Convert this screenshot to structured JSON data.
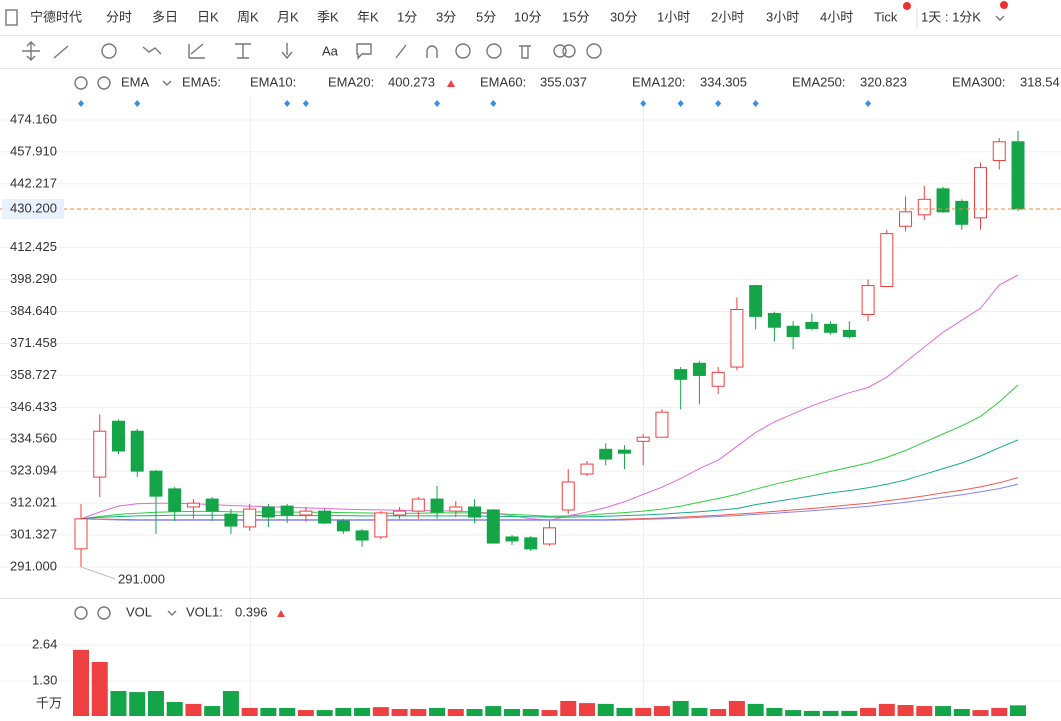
{
  "toolbar": {
    "stock": "宁德时代",
    "periods": [
      "分时",
      "多日",
      "日K",
      "周K",
      "月K",
      "季K",
      "年K",
      "1分",
      "3分",
      "5分",
      "10分",
      "15分",
      "30分",
      "1小时",
      "2小时",
      "3小时",
      "4小时",
      "Tick"
    ],
    "active_period": 2,
    "interval": "1天 : 1分K",
    "text_tool": "Aa"
  },
  "chart_data": [
    {
      "type": "candlestick",
      "title": "EMA",
      "inactive_series": [
        "EMA5:",
        "EMA10:"
      ],
      "ylim": [
        281.3,
        486.2
      ],
      "log": true,
      "grid": true,
      "up_color": "#ee4040",
      "down_color": "#14a548",
      "yticks": [
        {
          "value": 474.16,
          "label": "474.160"
        },
        {
          "value": 457.91,
          "label": "457.910"
        },
        {
          "value": 442.217,
          "label": "442.217"
        },
        {
          "value": 412.425,
          "label": "412.425"
        },
        {
          "value": 398.29,
          "label": "398.290"
        },
        {
          "value": 384.64,
          "label": "384.640"
        },
        {
          "value": 371.458,
          "label": "371.458"
        },
        {
          "value": 358.727,
          "label": "358.727"
        },
        {
          "value": 346.433,
          "label": "346.433"
        },
        {
          "value": 334.56,
          "label": "334.560"
        },
        {
          "value": 323.094,
          "label": "323.094"
        },
        {
          "value": 312.021,
          "label": "312.021"
        },
        {
          "value": 301.327,
          "label": "301.327"
        },
        {
          "value": 291,
          "label": "291.000"
        }
      ],
      "open": [
        296.8,
        321.0,
        341.2,
        337.5,
        323.1,
        316.9,
        310.7,
        313.4,
        308.3,
        304.0,
        310.7,
        311.0,
        308.0,
        309.3,
        306.0,
        302.7,
        300.7,
        308.0,
        309.3,
        313.4,
        309.3,
        310.7,
        309.7,
        300.7,
        300.4,
        298.4,
        309.7,
        322.1,
        330.9,
        330.6,
        333.8,
        335.3,
        361.0,
        363.5,
        354.5,
        362.0,
        395.7,
        383.8,
        378.5,
        380.1,
        379.3,
        376.8,
        383.4,
        395.3,
        422.2,
        427.5,
        439.8,
        433.8,
        426.1,
        453.6,
        463.0
      ],
      "high": [
        311.7,
        343.8,
        341.9,
        338.3,
        323.5,
        317.6,
        313.4,
        314.1,
        310.0,
        311.7,
        311.7,
        311.7,
        310.7,
        310.0,
        306.7,
        303.3,
        309.3,
        310.7,
        314.1,
        317.9,
        312.7,
        313.4,
        310.0,
        301.3,
        301.0,
        306.0,
        323.8,
        326.7,
        333.1,
        332.4,
        336.4,
        345.7,
        362.0,
        364.3,
        362.0,
        390.6,
        396.0,
        384.6,
        380.6,
        383.8,
        380.6,
        380.6,
        398.3,
        420.6,
        436.2,
        441.3,
        440.8,
        434.8,
        452.6,
        464.9,
        468.6
      ],
      "low": [
        291.0,
        314.1,
        329.2,
        321.0,
        301.7,
        306.0,
        306.7,
        306.0,
        301.7,
        302.7,
        304.0,
        305.3,
        305.7,
        305.0,
        301.7,
        297.5,
        300.0,
        306.7,
        306.7,
        306.7,
        307.3,
        305.3,
        298.5,
        298.1,
        296.1,
        297.8,
        308.3,
        321.4,
        325.2,
        323.8,
        325.2,
        335.3,
        345.7,
        347.6,
        351.5,
        360.7,
        377.2,
        372.3,
        369.1,
        376.8,
        375.1,
        373.5,
        380.6,
        395.3,
        419.7,
        425.1,
        428.4,
        420.6,
        420.6,
        449.2,
        429.3
      ],
      "close": [
        306.7,
        337.5,
        330.3,
        323.1,
        314.4,
        309.3,
        312.0,
        309.3,
        304.3,
        310.0,
        307.3,
        308.0,
        309.3,
        305.3,
        302.7,
        299.7,
        308.7,
        309.3,
        313.4,
        309.0,
        310.7,
        307.3,
        298.7,
        299.4,
        296.8,
        303.7,
        319.3,
        325.6,
        327.4,
        329.5,
        335.3,
        344.6,
        357.2,
        358.7,
        359.9,
        385.5,
        382.6,
        378.1,
        374.3,
        377.6,
        376.0,
        374.3,
        395.7,
        418.8,
        428.9,
        434.8,
        428.9,
        423.1,
        450.1,
        463.0,
        430.2
      ],
      "series": [
        {
          "name": "EMA20:",
          "color": "#e26bd6",
          "values": [
            306.7,
            309,
            311,
            311.8,
            312,
            312,
            311.8,
            311.5,
            311.2,
            311,
            310.8,
            310.6,
            310.4,
            310.2,
            310,
            309.8,
            309.7,
            309.6,
            309.5,
            309.4,
            309.3,
            309.1,
            308.6,
            307.8,
            306.8,
            306.2,
            307.7,
            309,
            310.5,
            312.5,
            315,
            317.5,
            320.5,
            324,
            327,
            332,
            337,
            341,
            344,
            347,
            349.5,
            352,
            354,
            358,
            364,
            370,
            376,
            381,
            386,
            396,
            400.273
          ]
        },
        {
          "name": "EMA60:",
          "color": "#2fcf3e",
          "values": [
            306.7,
            307.5,
            308.2,
            308.6,
            308.9,
            309.1,
            309.2,
            309.2,
            309.1,
            309,
            309,
            309,
            308.9,
            308.9,
            308.8,
            308.7,
            308.6,
            308.6,
            308.6,
            308.7,
            308.7,
            308.7,
            308.5,
            308.2,
            307.9,
            307.6,
            307.7,
            308,
            308.4,
            308.8,
            309.3,
            310,
            311,
            312.3,
            313.6,
            315,
            316.8,
            318.5,
            320,
            321.5,
            323,
            324.5,
            326,
            328,
            330.5,
            333.5,
            336.5,
            339.5,
            343,
            348.5,
            355.037
          ]
        },
        {
          "name": "EMA120:",
          "color": "#17ad8c",
          "values": [
            306.7,
            307.2,
            307.5,
            307.7,
            307.8,
            307.9,
            307.9,
            307.9,
            307.9,
            307.9,
            307.8,
            307.8,
            307.8,
            307.8,
            307.8,
            307.7,
            307.7,
            307.7,
            307.7,
            307.7,
            307.7,
            307.7,
            307.6,
            307.5,
            307.4,
            307.3,
            307.3,
            307.4,
            307.6,
            307.8,
            308,
            308.3,
            308.7,
            309.1,
            309.6,
            310.2,
            311.5,
            312.5,
            313.5,
            314.5,
            315.5,
            316.3,
            317.3,
            318.5,
            320,
            322,
            324,
            326,
            328.5,
            331.5,
            334.305
          ]
        },
        {
          "name": "EMA250:",
          "color": "#ef5b4b",
          "values": [
            306.7,
            306.6,
            306.5,
            306.4,
            306.4,
            306.4,
            306.4,
            306.4,
            306.4,
            306.4,
            306.4,
            306.4,
            306.4,
            306.4,
            306.4,
            306.4,
            306.4,
            306.4,
            306.4,
            306.4,
            306.4,
            306.4,
            306.4,
            306.4,
            306.4,
            306.4,
            306.4,
            306.4,
            306.4,
            306.6,
            306.8,
            307,
            307.3,
            307.6,
            307.9,
            308.3,
            308.7,
            309.2,
            309.7,
            310.2,
            310.8,
            311.4,
            312,
            312.8,
            313.6,
            314.5,
            315.5,
            316.5,
            317.6,
            319,
            320.823
          ]
        },
        {
          "name": "EMA300:",
          "color": "#8a84ee",
          "values": [
            306.7,
            306.5,
            306.3,
            306.2,
            306.2,
            306.2,
            306.2,
            306.2,
            306.2,
            306.2,
            306.2,
            306.2,
            306.2,
            306.2,
            306.2,
            306.2,
            306.2,
            306.2,
            306.2,
            306.2,
            306.2,
            306.2,
            306.2,
            306.2,
            306.2,
            306.2,
            306.2,
            306.2,
            306.2,
            306.3,
            306.5,
            306.7,
            306.9,
            307.2,
            307.5,
            307.8,
            308.2,
            308.6,
            309,
            309.4,
            309.9,
            310.4,
            310.9,
            311.6,
            312.3,
            313.1,
            314,
            314.9,
            315.9,
            317,
            318.54
          ]
        }
      ],
      "current_price": {
        "value": 430.2,
        "label": "430.200"
      },
      "min_label": {
        "value": 291,
        "label": "291.000"
      },
      "event_markers": [
        0,
        3,
        11,
        12,
        19,
        22,
        30,
        32,
        34,
        36,
        42
      ]
    },
    {
      "type": "bar",
      "title": "VOL",
      "unit": "千万",
      "ylim": [
        0,
        3.2
      ],
      "yticks": [
        2.64,
        {
          "value": 1.3,
          "label": "1.30"
        }
      ],
      "series": [
        {
          "name": "VOL1:",
          "color": "#ee4040",
          "values": [
            2.46,
            2.01,
            0.93,
            0.89,
            0.93,
            0.52,
            0.45,
            0.37,
            0.93,
            0.3,
            0.3,
            0.3,
            0.22,
            0.22,
            0.3,
            0.3,
            0.33,
            0.26,
            0.26,
            0.3,
            0.26,
            0.26,
            0.37,
            0.26,
            0.26,
            0.22,
            0.56,
            0.48,
            0.45,
            0.3,
            0.3,
            0.37,
            0.56,
            0.3,
            0.26,
            0.56,
            0.45,
            0.3,
            0.22,
            0.19,
            0.19,
            0.19,
            0.3,
            0.45,
            0.41,
            0.37,
            0.37,
            0.26,
            0.22,
            0.3,
            0.396
          ]
        }
      ]
    }
  ]
}
